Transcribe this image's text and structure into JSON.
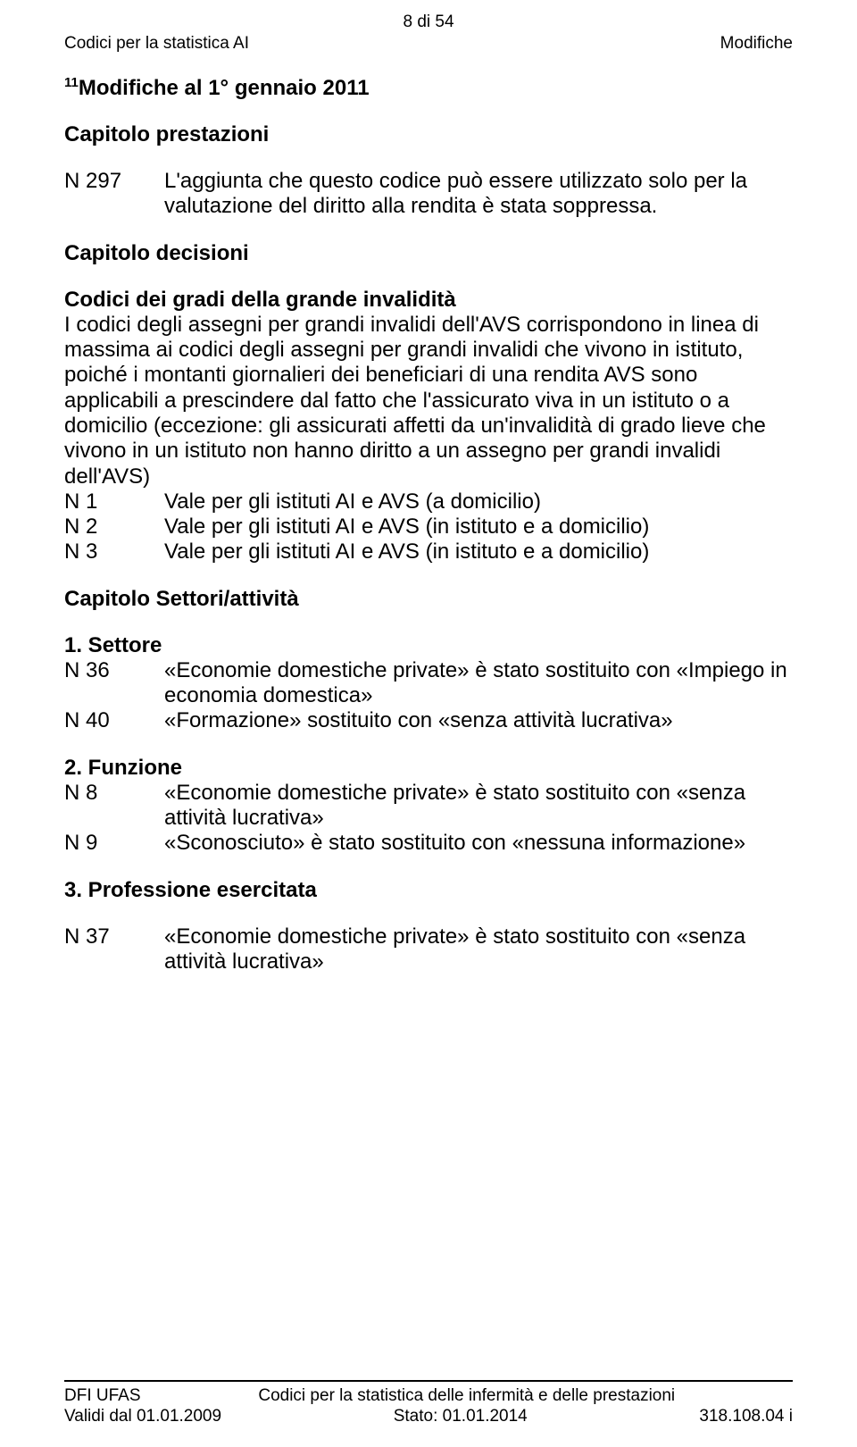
{
  "header": {
    "page_indicator": "8 di 54",
    "left": "Codici per la statistica AI",
    "right": "Modifiche"
  },
  "title": {
    "sup": "11",
    "text": "Modifiche al 1° gennaio 2011"
  },
  "cap_prestazioni": {
    "heading": "Capitolo prestazioni",
    "n297": {
      "label": "N 297",
      "text": "L'aggiunta che questo codice può essere utilizzato solo per la valutazione del diritto alla rendita è stata soppressa."
    }
  },
  "cap_decisioni": {
    "heading": "Capitolo decisioni",
    "sub_heading": "Codici dei gradi della grande invalidità",
    "paragraph": "I codici degli assegni per grandi invalidi dell'AVS corrispondono in linea di massima ai codici degli assegni per grandi invalidi che vivono in istituto, poiché i montanti giornalieri dei beneficiari di una rendita AVS sono applicabili a prescindere dal fatto che l'assicurato viva in un istituto o a domicilio (eccezione: gli assicurati affetti da un'invalidità di grado lieve che vivono in un istituto non hanno diritto a un assegno per grandi invalidi dell'AVS)",
    "n1": {
      "label": "N 1",
      "text": "Vale per gli istituti AI e AVS (a domicilio)"
    },
    "n2": {
      "label": "N 2",
      "text": "Vale per gli istituti AI e AVS (in istituto e a domicilio)"
    },
    "n3": {
      "label": "N 3",
      "text": "Vale per gli istituti AI e AVS (in istituto e a domicilio)"
    }
  },
  "cap_settori": {
    "heading": "Capitolo Settori/attività",
    "settore": {
      "heading": "1. Settore",
      "n36": {
        "label": "N 36",
        "text": "«Economie domestiche private» è stato sostituito con «Impiego in economia domestica»"
      },
      "n40": {
        "label": "N 40",
        "text": "«Formazione» sostituito con «senza attività lucrativa»"
      }
    },
    "funzione": {
      "heading": "2. Funzione",
      "n8": {
        "label": "N 8",
        "text": "«Economie domestiche private» è stato sostituito con «senza attività lucrativa»"
      },
      "n9": {
        "label": "N 9",
        "text": "«Sconosciuto» è stato sostituito con «nessuna informazione»"
      }
    },
    "professione": {
      "heading": "3. Professione esercitata",
      "n37": {
        "label": "N 37",
        "text": "«Economie domestiche private» è stato sostituito con «senza attività lucrativa»"
      }
    }
  },
  "footer": {
    "row1": {
      "left": "DFI UFAS",
      "center": "Codici per la statistica delle infermità e delle prestazioni",
      "right": ""
    },
    "row2": {
      "left": "Validi dal 01.01.2009",
      "center": "Stato: 01.01.2014",
      "right": "318.108.04 i"
    }
  }
}
